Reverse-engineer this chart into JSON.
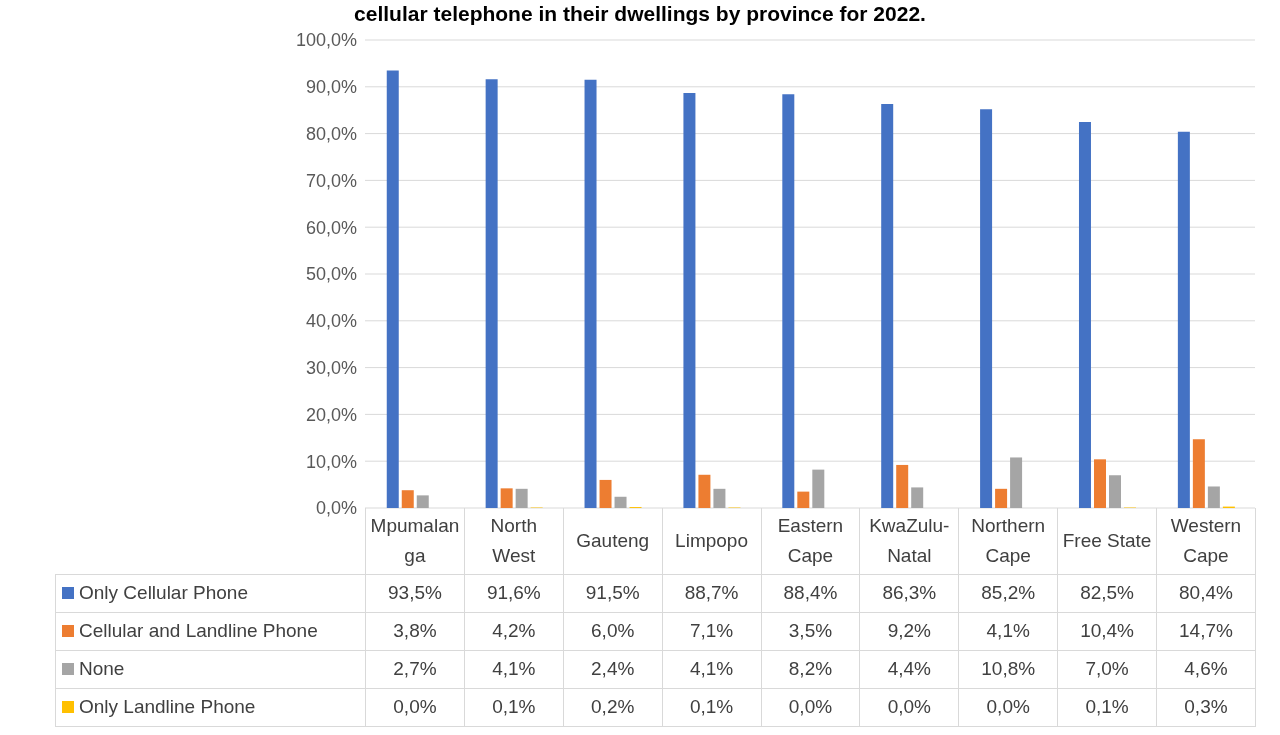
{
  "chart_data": {
    "type": "bar",
    "title": "cellular telephone in their dwellings by province for 2022.",
    "categories": [
      "Mpumalanga",
      "North West",
      "Gauteng",
      "Limpopo",
      "Eastern Cape",
      "KwaZulu-Natal",
      "Northern Cape",
      "Free State",
      "Western Cape"
    ],
    "series": [
      {
        "name": "Only Cellular Phone",
        "color": "#4472c4",
        "values": [
          93.5,
          91.6,
          91.5,
          88.7,
          88.4,
          86.3,
          85.2,
          82.5,
          80.4
        ],
        "value_labels": [
          "93,5%",
          "91,6%",
          "91,5%",
          "88,7%",
          "88,4%",
          "86,3%",
          "85,2%",
          "82,5%",
          "80,4%"
        ]
      },
      {
        "name": "Cellular and Landline Phone",
        "color": "#ed7d31",
        "values": [
          3.8,
          4.2,
          6.0,
          7.1,
          3.5,
          9.2,
          4.1,
          10.4,
          14.7
        ],
        "value_labels": [
          "3,8%",
          "4,2%",
          "6,0%",
          "7,1%",
          "3,5%",
          "9,2%",
          "4,1%",
          "10,4%",
          "14,7%"
        ]
      },
      {
        "name": "None",
        "color": "#a5a5a5",
        "values": [
          2.7,
          4.1,
          2.4,
          4.1,
          8.2,
          4.4,
          10.8,
          7.0,
          4.6
        ],
        "value_labels": [
          "2,7%",
          "4,1%",
          "2,4%",
          "4,1%",
          "8,2%",
          "4,4%",
          "10,8%",
          "7,0%",
          "4,6%"
        ]
      },
      {
        "name": "Only Landline Phone",
        "color": "#ffc000",
        "values": [
          0.0,
          0.1,
          0.2,
          0.1,
          0.0,
          0.0,
          0.0,
          0.1,
          0.3
        ],
        "value_labels": [
          "0,0%",
          "0,1%",
          "0,2%",
          "0,1%",
          "0,0%",
          "0,0%",
          "0,0%",
          "0,1%",
          "0,3%"
        ]
      }
    ],
    "ylim": [
      0,
      100
    ],
    "yticks": [
      {
        "value": 0,
        "label": "0,0%"
      },
      {
        "value": 10,
        "label": "10,0%"
      },
      {
        "value": 20,
        "label": "20,0%"
      },
      {
        "value": 30,
        "label": "30,0%"
      },
      {
        "value": 40,
        "label": "40,0%"
      },
      {
        "value": 50,
        "label": "50,0%"
      },
      {
        "value": 60,
        "label": "60,0%"
      },
      {
        "value": 70,
        "label": "70,0%"
      },
      {
        "value": 80,
        "label": "80,0%"
      },
      {
        "value": 90,
        "label": "90,0%"
      },
      {
        "value": 100,
        "label": "100,0%"
      }
    ],
    "grid": "y",
    "legend": "bottom"
  }
}
